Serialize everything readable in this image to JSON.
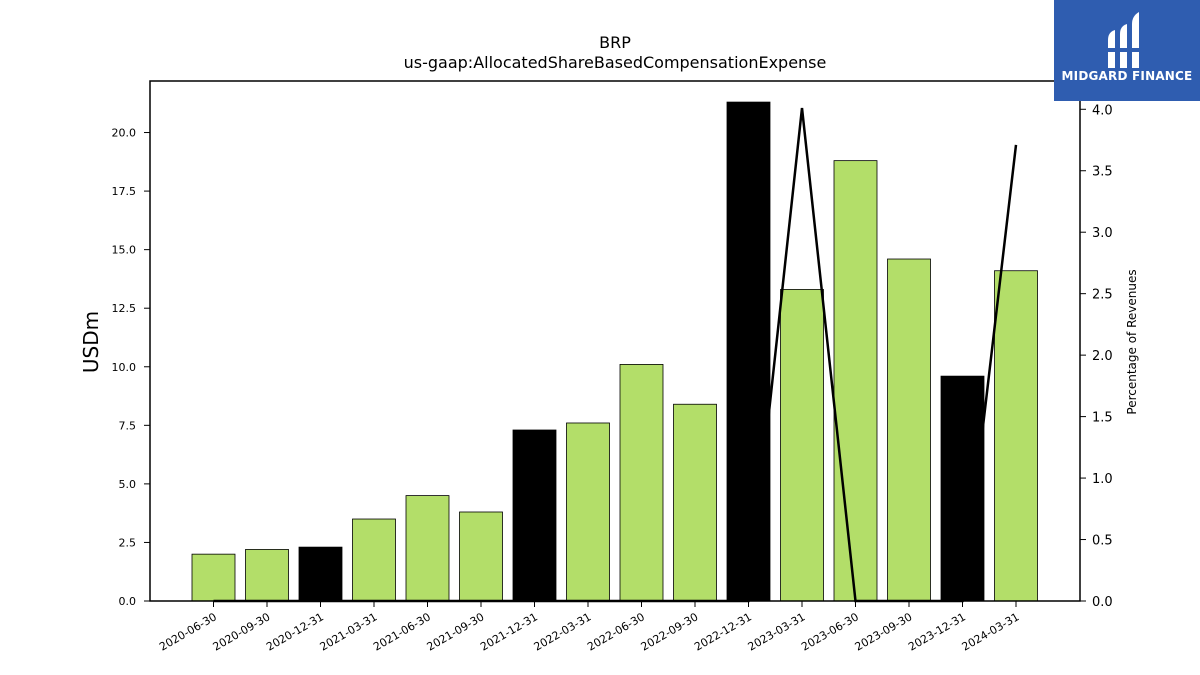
{
  "chart_data": {
    "type": "bar",
    "title": "BRP",
    "subtitle": "us-gaap:AllocatedShareBasedCompensationExpense",
    "ylabel": "USDm",
    "y2label": "Percentage of Revenues",
    "categories": [
      "2020-06-30",
      "2020-09-30",
      "2020-12-31",
      "2021-03-31",
      "2021-06-30",
      "2021-09-30",
      "2021-12-31",
      "2022-03-31",
      "2022-06-30",
      "2022-09-30",
      "2022-12-31",
      "2023-03-31",
      "2023-06-30",
      "2023-09-30",
      "2023-12-31",
      "2024-03-31"
    ],
    "series": [
      {
        "values": [
          2.0,
          2.2,
          2.3,
          3.5,
          4.5,
          3.8,
          7.3,
          7.6,
          10.1,
          8.4,
          21.3,
          13.3,
          18.8,
          14.6,
          9.6,
          14.1
        ],
        "highlight": [
          false,
          false,
          true,
          false,
          false,
          false,
          true,
          false,
          false,
          false,
          true,
          false,
          false,
          false,
          true,
          false
        ],
        "color": "#b3de69",
        "highlight_color": "#000000",
        "axis": "left"
      },
      {
        "type": "line",
        "values": [
          0.0,
          0.0,
          0.0,
          0.0,
          0.0,
          0.0,
          0.0,
          0.0,
          0.0,
          0.0,
          0.0,
          4.01,
          0.0,
          0.0,
          0.0,
          3.71
        ],
        "color": "#000000",
        "axis": "right"
      }
    ],
    "ylim": [
      0,
      22.2
    ],
    "y2lim": [
      0,
      4.23
    ],
    "yticks": [
      "0.0",
      "2.5",
      "5.0",
      "7.5",
      "10.0",
      "12.5",
      "15.0",
      "17.5",
      "20.0"
    ],
    "y2ticks": [
      "0.0",
      "0.5",
      "1.0",
      "1.5",
      "2.0",
      "2.5",
      "3.0",
      "3.5",
      "4.0"
    ],
    "grid": false
  },
  "logo": {
    "text": "MIDGARD FINANCE",
    "color": "#2f5db0"
  }
}
